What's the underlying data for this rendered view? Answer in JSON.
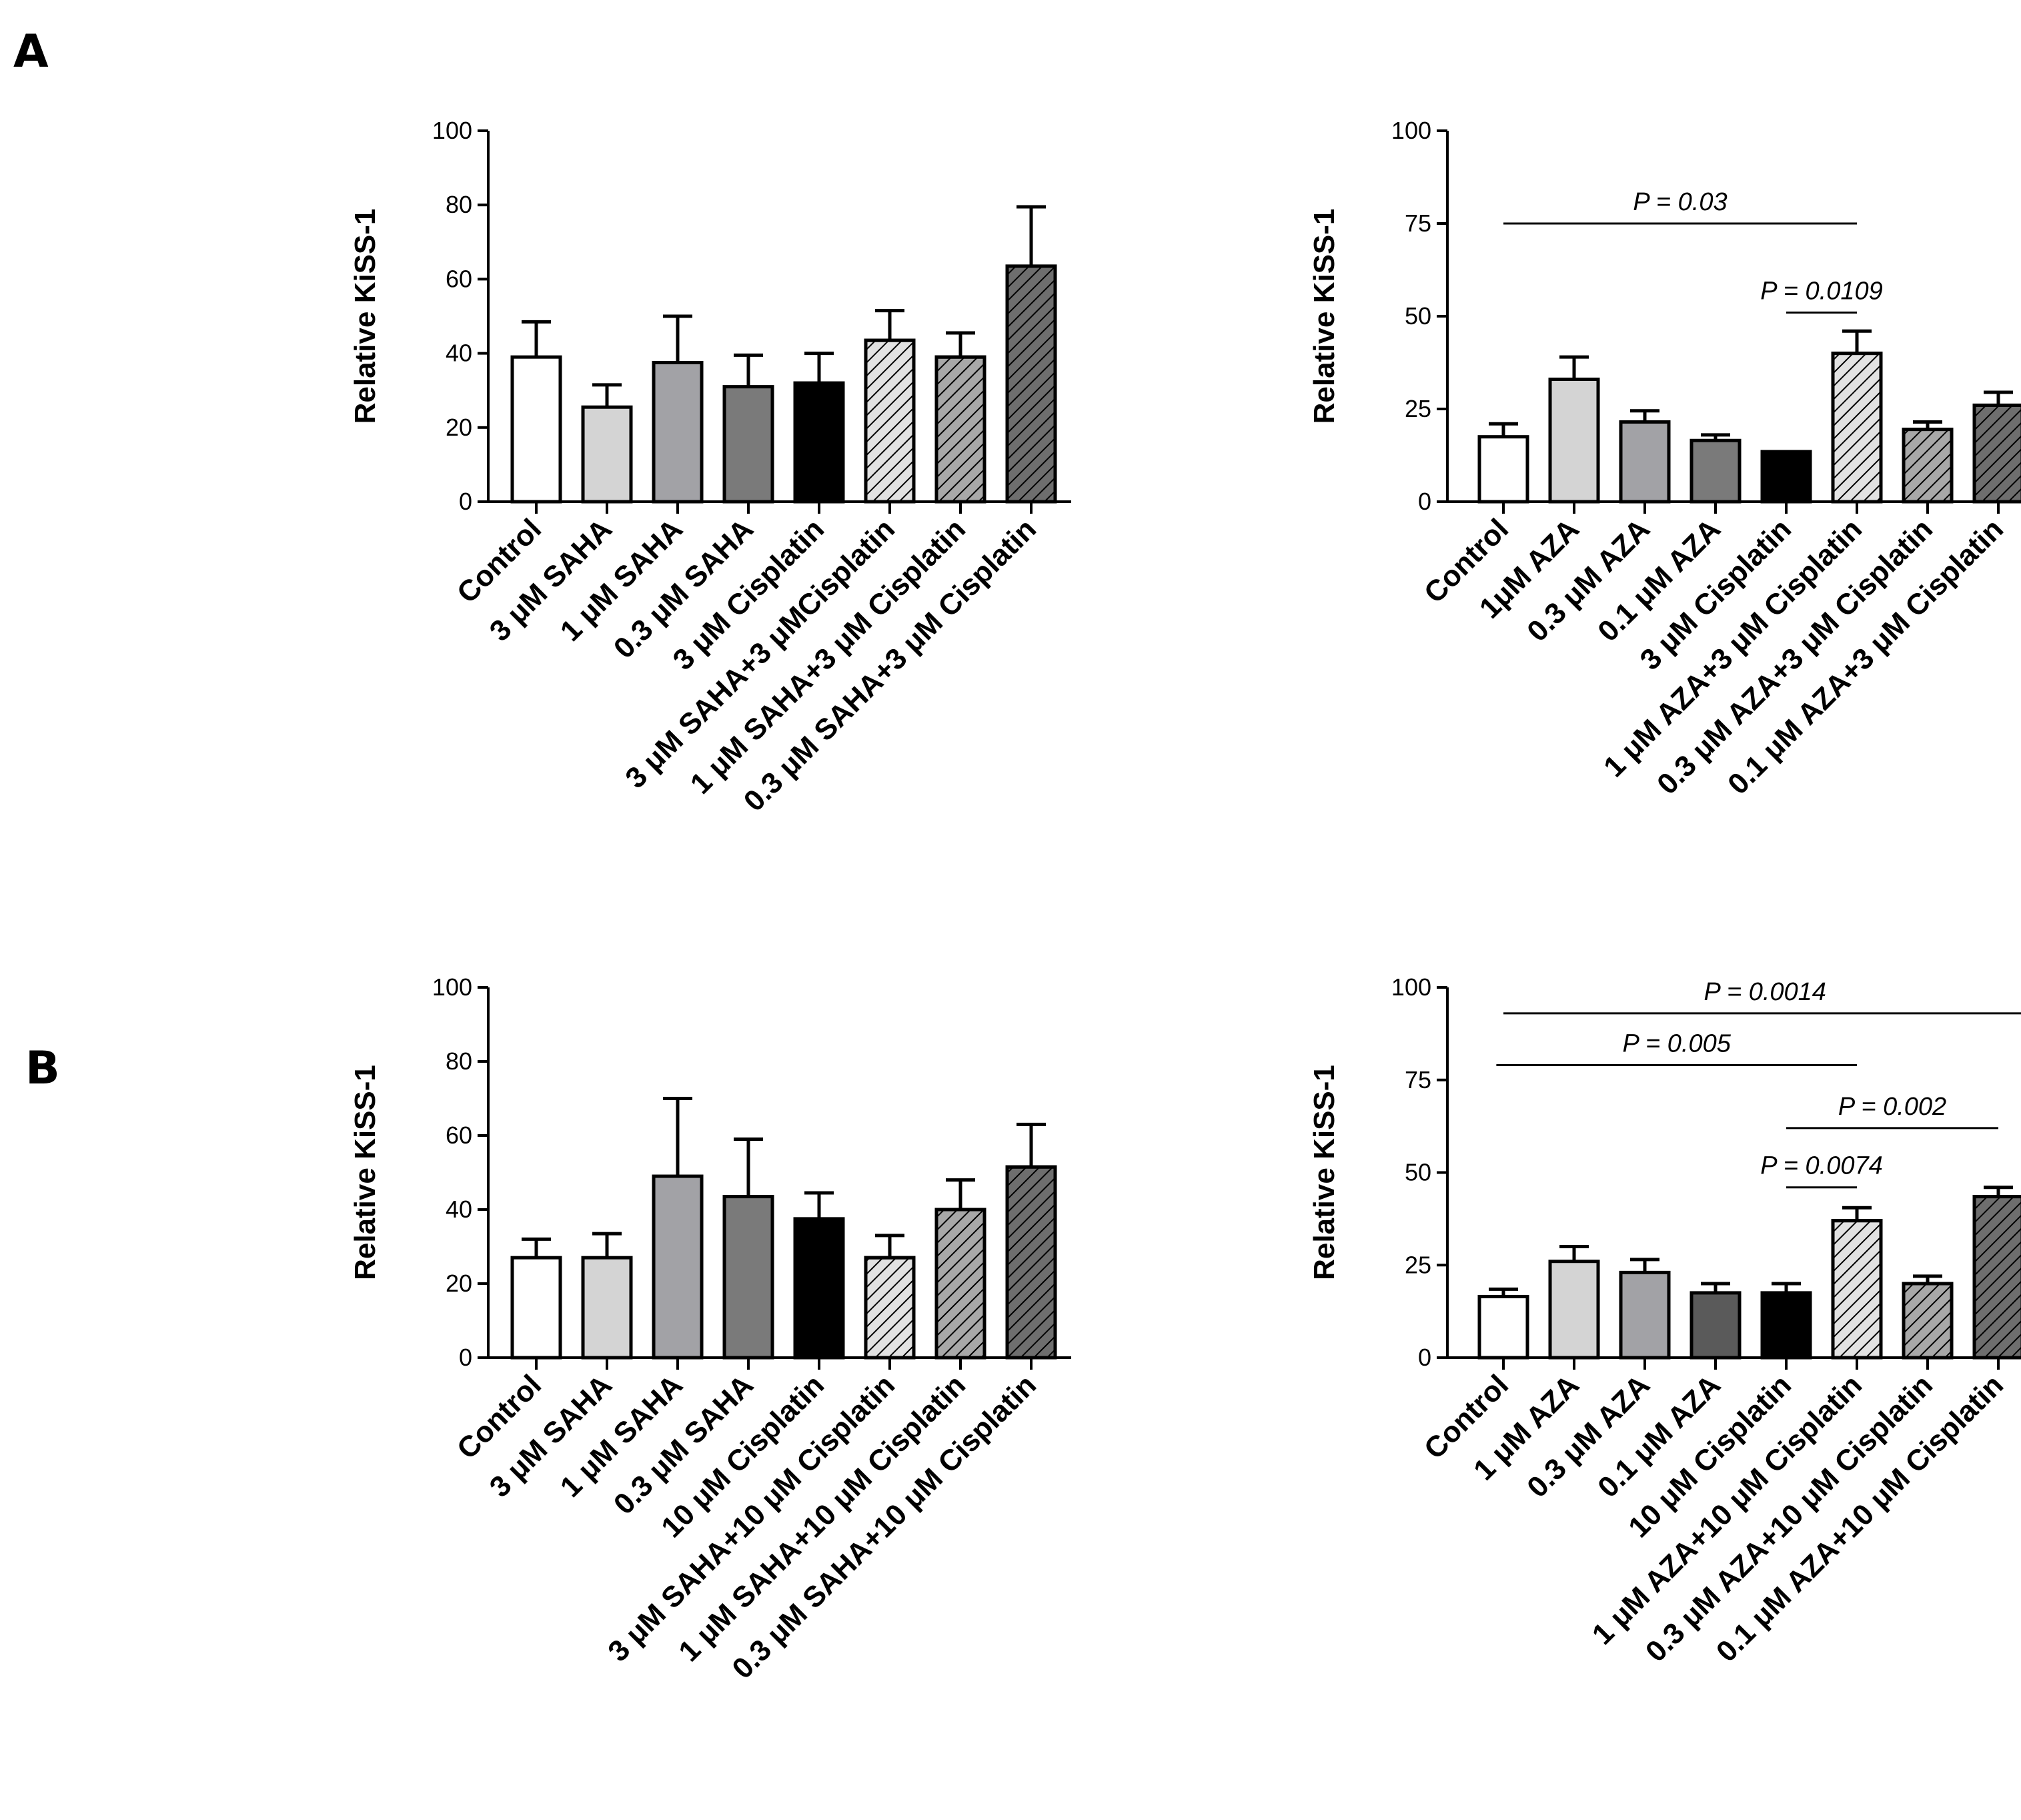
{
  "panels": [
    "A",
    "B"
  ],
  "chart_data": [
    {
      "id": "A-left",
      "type": "bar",
      "title": "",
      "xlabel": "",
      "ylabel": "Relative KiSS-1",
      "ylim": [
        0,
        100
      ],
      "yticks": [
        0,
        20,
        40,
        60,
        80,
        100
      ],
      "grid": false,
      "categories": [
        "Control",
        "3 μM SAHA",
        "1 μM SAHA",
        "0.3 μM SAHA",
        "3 μM Cisplatin",
        "3 μM SAHA+3 μMCisplatin",
        "1 μM SAHA+3 μM Cisplatin",
        "0.3 μM SAHA+3 μM Cisplatin"
      ],
      "values": [
        39,
        25.5,
        37.5,
        31,
        32,
        43.5,
        39,
        63.5
      ],
      "errors": [
        9.5,
        6,
        12.5,
        8.5,
        8,
        8,
        6.5,
        16
      ],
      "colors": [
        "#ffffff",
        "#d4d4d4",
        "#a2a2a6",
        "#7a7a7a",
        "#000000",
        "#e2e2e2",
        "#a8a8a8",
        "#6e6e6e"
      ],
      "hatched": [
        false,
        false,
        false,
        false,
        false,
        true,
        true,
        true
      ],
      "significance": []
    },
    {
      "id": "A-right",
      "type": "bar",
      "title": "",
      "xlabel": "",
      "ylabel": "Relative KiSS-1",
      "ylim": [
        0,
        100
      ],
      "yticks": [
        0,
        25,
        50,
        75,
        100
      ],
      "grid": false,
      "categories": [
        "Control",
        "1μM AZA",
        "0.3 μM AZA",
        "0.1 μM AZA",
        "3 μM Cisplatin",
        "1 μM AZA+3 μM Cisplatin",
        "0.3 μM AZA+3 μM Cisplatin",
        "0.1 μM AZA+3 μM Cisplatin"
      ],
      "values": [
        17.5,
        33,
        21.5,
        16.5,
        13.5,
        40,
        19.5,
        26
      ],
      "errors": [
        3.5,
        6,
        3,
        1.5,
        0,
        6,
        2,
        3.5
      ],
      "colors": [
        "#ffffff",
        "#d4d4d4",
        "#a2a2a6",
        "#7a7a7a",
        "#000000",
        "#e2e2e2",
        "#a8a8a8",
        "#6e6e6e"
      ],
      "hatched": [
        false,
        false,
        false,
        false,
        false,
        true,
        true,
        true
      ],
      "significance": [
        {
          "from": 0,
          "to": 5,
          "level": 75,
          "label": "P = 0.03"
        },
        {
          "from": 4,
          "to": 5,
          "level": 51,
          "label": "P = 0.0109"
        }
      ]
    },
    {
      "id": "B-left",
      "type": "bar",
      "title": "",
      "xlabel": "",
      "ylabel": "Relative KiSS-1",
      "ylim": [
        0,
        100
      ],
      "yticks": [
        0,
        20,
        40,
        60,
        80,
        100
      ],
      "grid": false,
      "categories": [
        "Control",
        "3 μM SAHA",
        "1 μM SAHA",
        "0.3 μM SAHA",
        "10 μM Cisplatin",
        "3 μM SAHA+10 μM Cisplatin",
        "1 μM SAHA+10 μM Cisplatin",
        "0.3 μM SAHA+10 μM Cisplatin"
      ],
      "values": [
        27,
        27,
        49,
        43.5,
        37.5,
        27,
        40,
        51.5
      ],
      "errors": [
        5,
        6.5,
        21,
        15.5,
        7,
        6,
        8,
        11.5
      ],
      "colors": [
        "#ffffff",
        "#d4d4d4",
        "#a2a2a6",
        "#7a7a7a",
        "#000000",
        "#e2e2e2",
        "#a8a8a8",
        "#6e6e6e"
      ],
      "hatched": [
        false,
        false,
        false,
        false,
        false,
        true,
        true,
        true
      ],
      "significance": []
    },
    {
      "id": "B-right",
      "type": "bar",
      "title": "",
      "xlabel": "",
      "ylabel": "Relative KiSS-1",
      "ylim": [
        0,
        100
      ],
      "yticks": [
        0,
        25,
        50,
        75,
        100
      ],
      "grid": false,
      "categories": [
        "Control",
        "1 μM AZA",
        "0.3 μM AZA",
        "0.1 μM AZA",
        "10 μM Cisplatin",
        "1 μM AZA+10 μM Cisplatin",
        "0.3 μM AZA+10 μM Cisplatin",
        "0.1 μM AZA+10 μM Cisplatin"
      ],
      "values": [
        16.5,
        26,
        23,
        17.5,
        17.5,
        37,
        20,
        43.5
      ],
      "errors": [
        2,
        4,
        3.5,
        2.5,
        2.5,
        3.5,
        2,
        2.5
      ],
      "colors": [
        "#ffffff",
        "#d4d4d4",
        "#a2a2a6",
        "#5a5a5a",
        "#000000",
        "#e2e2e2",
        "#a8a8a8",
        "#6e6e6e"
      ],
      "hatched": [
        false,
        false,
        false,
        false,
        false,
        true,
        true,
        true
      ],
      "significance": [
        {
          "from": 0,
          "to": 7.4,
          "level": 93,
          "label": "P = 0.0014"
        },
        {
          "from": -0.1,
          "to": 5,
          "level": 79,
          "label": "P = 0.005"
        },
        {
          "from": 4,
          "to": 7,
          "level": 62,
          "label": "P = 0.002"
        },
        {
          "from": 4,
          "to": 5,
          "level": 46,
          "label": "P = 0.0074"
        }
      ]
    }
  ]
}
